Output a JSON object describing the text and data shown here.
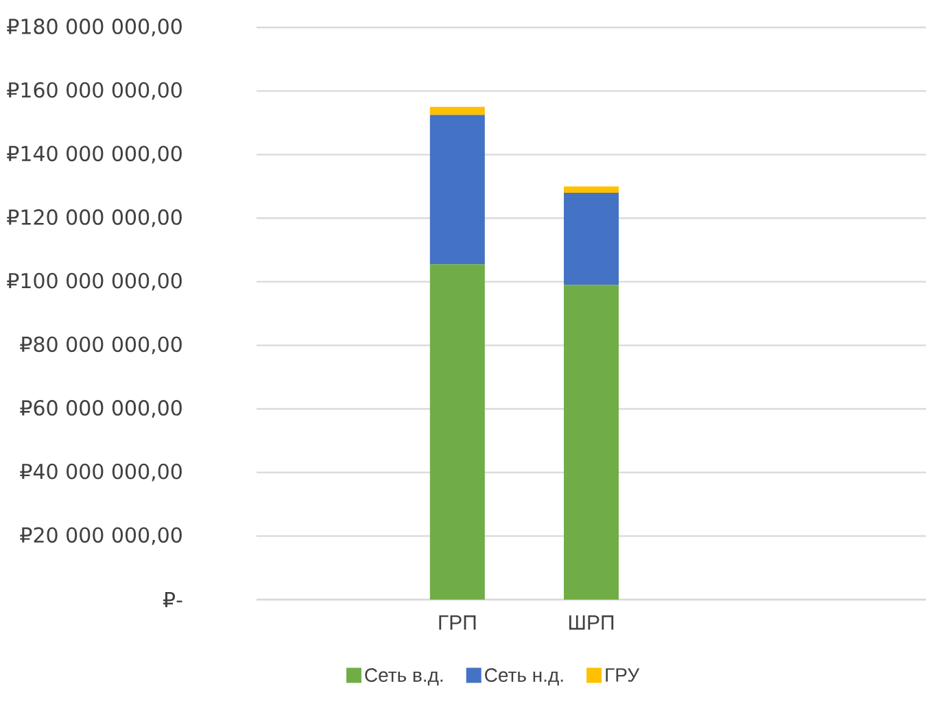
{
  "chart_data": {
    "type": "bar",
    "stacked": true,
    "categories": [
      null,
      "ГРП",
      "ШРП",
      null,
      null
    ],
    "series": [
      {
        "name": "Сеть в.д.",
        "color": "#70ad47",
        "values": [
          null,
          105500000,
          99000000,
          null,
          null
        ]
      },
      {
        "name": "Сеть н.д.",
        "color": "#4472c4",
        "values": [
          null,
          47000000,
          29000000,
          null,
          null
        ]
      },
      {
        "name": "ГРУ",
        "color": "#ffc000",
        "values": [
          null,
          2500000,
          2000000,
          null,
          null
        ]
      }
    ],
    "ylim": [
      0,
      180000000
    ],
    "yticks": [
      {
        "value": 0,
        "label": "₽-"
      },
      {
        "value": 20000000,
        "label": "₽20 000 000,00"
      },
      {
        "value": 40000000,
        "label": "₽40 000 000,00"
      },
      {
        "value": 60000000,
        "label": "₽60 000 000,00"
      },
      {
        "value": 80000000,
        "label": "₽80 000 000,00"
      },
      {
        "value": 100000000,
        "label": "₽100 000 000,00"
      },
      {
        "value": 120000000,
        "label": "₽120 000 000,00"
      },
      {
        "value": 140000000,
        "label": "₽140 000 000,00"
      },
      {
        "value": 160000000,
        "label": "₽160 000 000,00"
      },
      {
        "value": 180000000,
        "label": "₽180 000 000,00"
      }
    ],
    "grid": "y",
    "legend": "bottom"
  }
}
